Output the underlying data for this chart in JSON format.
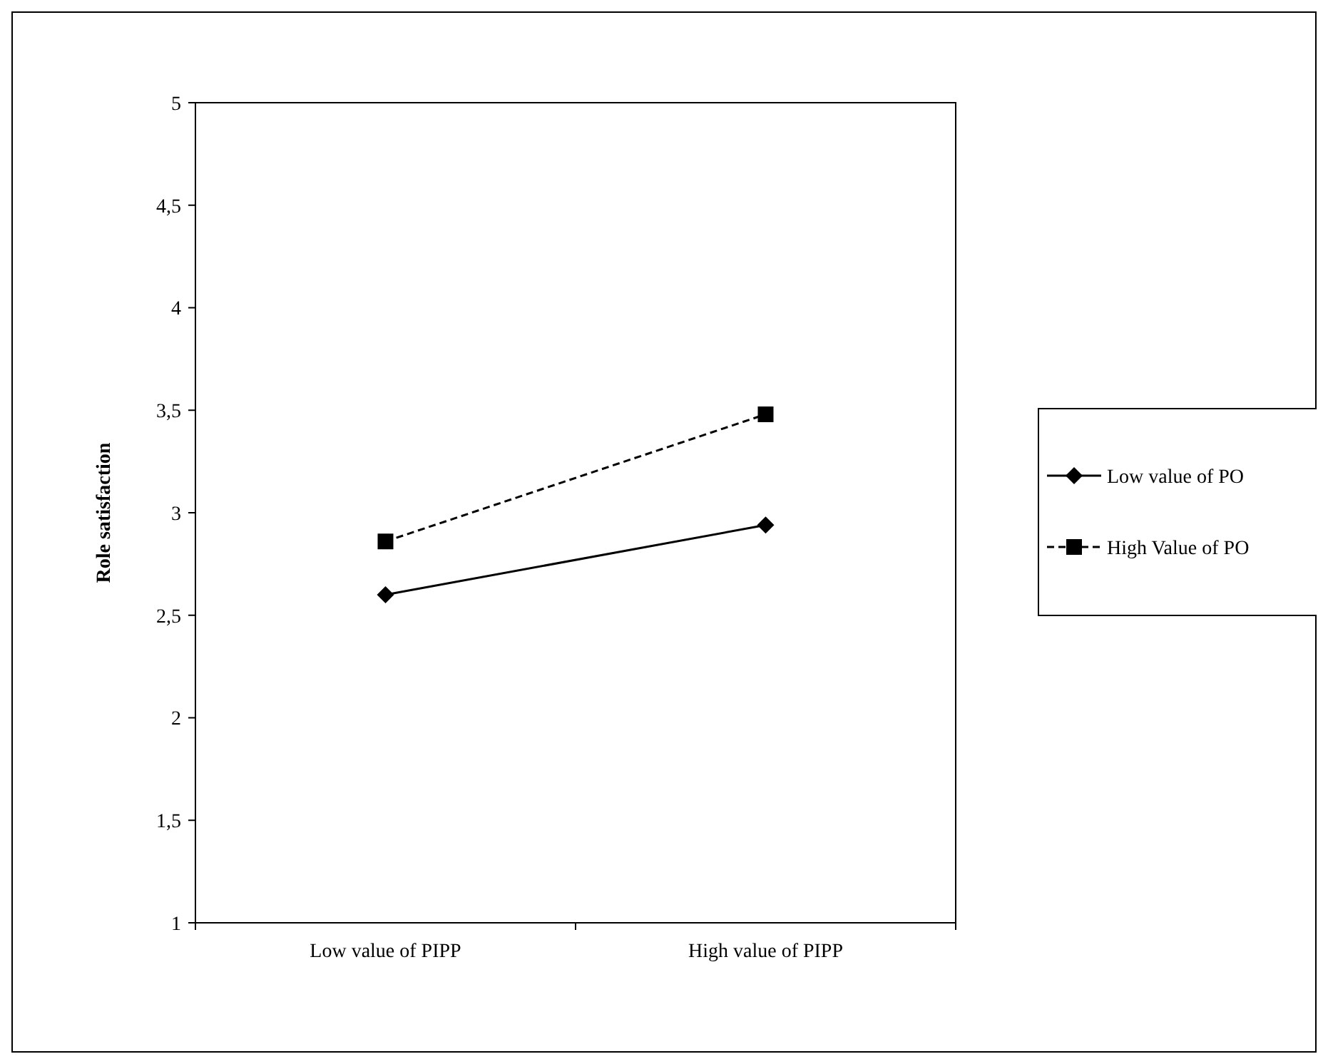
{
  "chart_data": {
    "type": "line",
    "ylabel": "Role satisfaction",
    "categories": [
      "Low value of PIPP",
      "High value of PIPP"
    ],
    "series": [
      {
        "name": "Low value of PO",
        "color": "#000000",
        "values": [
          2.6,
          2.94
        ],
        "marker": "diamond",
        "line_style": "solid"
      },
      {
        "name": "High Value of PO",
        "color": "#000000",
        "values": [
          2.86,
          3.48
        ],
        "marker": "square",
        "line_style": "dashed"
      }
    ],
    "ylim": [
      1,
      5
    ],
    "yticks": [
      1,
      {
        "value": 1.5,
        "label": "1,5"
      },
      2,
      {
        "value": 2.5,
        "label": "2,5"
      },
      3,
      {
        "value": 3.5,
        "label": "3,5"
      },
      4,
      {
        "value": 4.5,
        "label": "4,5"
      },
      5
    ],
    "legend": "right"
  }
}
